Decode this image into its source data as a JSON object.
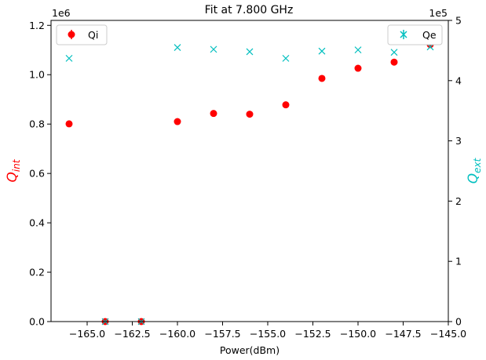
{
  "chart_data": {
    "type": "scatter",
    "title": "Fit at 7.800 GHz",
    "xlabel": "Power(dBm)",
    "ylabel_left": "Q",
    "ylabel_left_sub": "int",
    "ylabel_right": "Q",
    "ylabel_right_sub": "ext",
    "left_multiplier": "1e6",
    "right_multiplier": "1e5",
    "xlim": [
      -167.0,
      -145.0
    ],
    "ylim_left": [
      0,
      1.22
    ],
    "ylim_right": [
      0,
      5
    ],
    "x_ticks": [
      -165.0,
      -162.5,
      -160.0,
      -157.5,
      -155.0,
      -152.5,
      -150.0,
      -147.5,
      -145.0
    ],
    "x_tick_labels": [
      "−165.0",
      "−162.5",
      "−160.0",
      "−157.5",
      "−155.0",
      "−152.5",
      "−150.0",
      "−147.5",
      "−145.0"
    ],
    "y_left_ticks": [
      0,
      0.2,
      0.4,
      0.6,
      0.8,
      1.0,
      1.2
    ],
    "y_left_tick_labels": [
      "0.0",
      "0.2",
      "0.4",
      "0.6",
      "0.8",
      "1.0",
      "1.2"
    ],
    "y_right_ticks": [
      0,
      1,
      2,
      3,
      4,
      5
    ],
    "y_right_tick_labels": [
      "0",
      "1",
      "2",
      "3",
      "4",
      "5"
    ],
    "grid": false,
    "series": [
      {
        "name": "Qi",
        "axis": "left",
        "marker": "circle",
        "color": "#ff0000",
        "x": [
          -166,
          -164,
          -162,
          -160,
          -158,
          -156,
          -154,
          -152,
          -150,
          -148,
          -146
        ],
        "y": [
          0.801,
          0.0,
          0.0,
          0.81,
          0.843,
          0.84,
          0.878,
          0.985,
          1.026,
          1.051,
          1.122
        ]
      },
      {
        "name": "Qe",
        "axis": "right",
        "marker": "x",
        "color": "#00bfbf",
        "x": [
          -166,
          -164,
          -162,
          -160,
          -158,
          -156,
          -154,
          -152,
          -150,
          -148,
          -146
        ],
        "y": [
          4.37,
          0.0,
          0.0,
          4.55,
          4.52,
          4.48,
          4.37,
          4.49,
          4.51,
          4.47,
          4.56
        ]
      }
    ],
    "legend_left": {
      "placement": "top-left",
      "label": "Qi"
    },
    "legend_right": {
      "placement": "top-right",
      "label": "Qe"
    }
  }
}
